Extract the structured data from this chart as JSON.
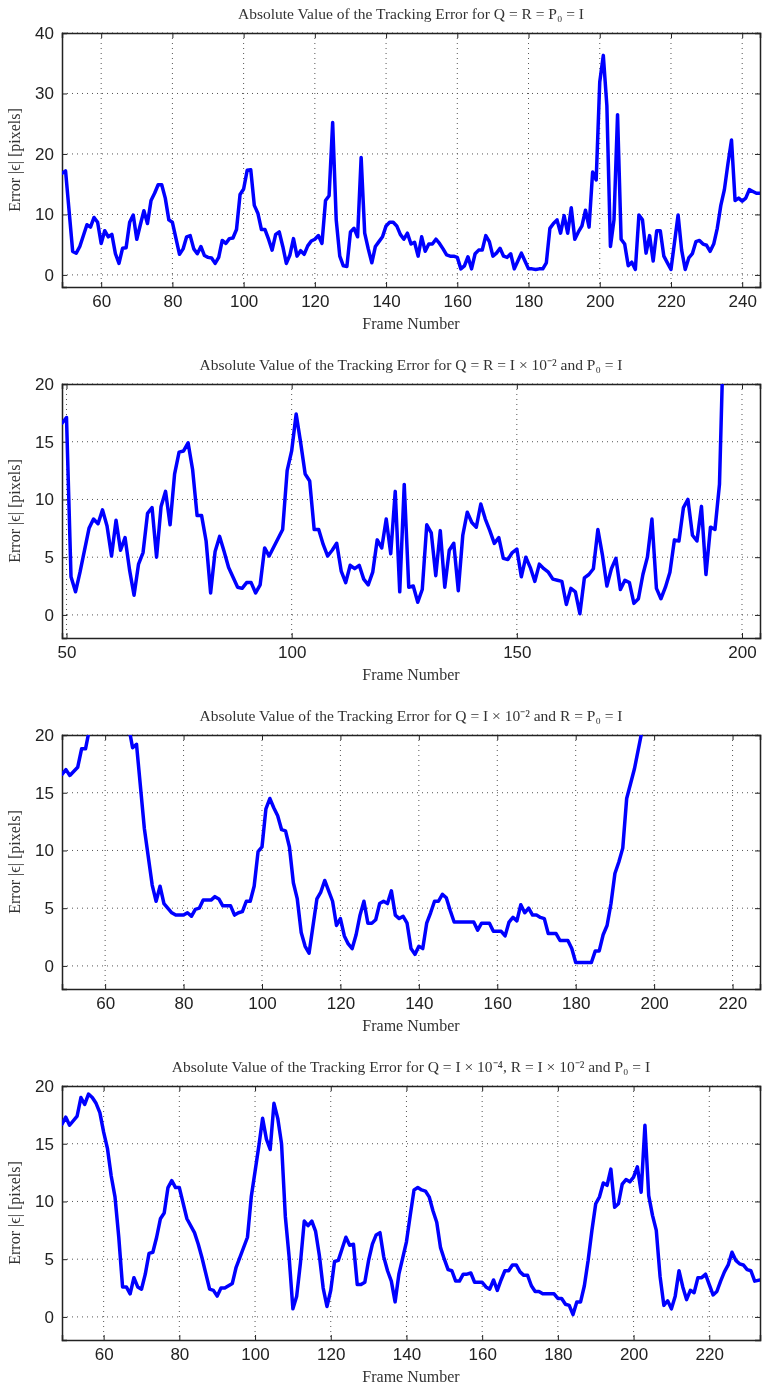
{
  "chart_data": [
    {
      "type": "line",
      "title": "Absolute Value of the Tracking Error for Q = R = P₀ = I",
      "xlabel": "Frame Number",
      "ylabel": "Error |ϵ| [pixels]",
      "xlim": [
        49,
        245
      ],
      "ylim": [
        -2,
        40
      ],
      "xticks": [
        60,
        80,
        100,
        120,
        140,
        160,
        180,
        200,
        220,
        240
      ],
      "yticks": [
        0,
        10,
        20,
        30,
        40
      ],
      "grid": true,
      "x": [
        49,
        50,
        52,
        53,
        54,
        56,
        57,
        58,
        59,
        60,
        61,
        62,
        63,
        64,
        65,
        66,
        67,
        68,
        69,
        70,
        71,
        72,
        73,
        74,
        75,
        76,
        77,
        78,
        79,
        80,
        82,
        83,
        84,
        85,
        86,
        87,
        88,
        89,
        90,
        91,
        92,
        93,
        94,
        95,
        96,
        97,
        98,
        99,
        100,
        101,
        102,
        103,
        104,
        105,
        106,
        107,
        108,
        109,
        110,
        111,
        112,
        113,
        114,
        115,
        116,
        117,
        118,
        119,
        120,
        121,
        122,
        123,
        124,
        125,
        126,
        127,
        128,
        129,
        130,
        131,
        132,
        133,
        134,
        135,
        136,
        137,
        138,
        139,
        140,
        141,
        142,
        143,
        144,
        145,
        146,
        147,
        148,
        149,
        150,
        151,
        152,
        153,
        154,
        155,
        156,
        157,
        158,
        159,
        160,
        161,
        162,
        163,
        164,
        165,
        166,
        167,
        168,
        169,
        170,
        171,
        172,
        173,
        174,
        175,
        176,
        177,
        178,
        179,
        180,
        181,
        182,
        183,
        184,
        185,
        186,
        187,
        188,
        189,
        190,
        191,
        192,
        193,
        194,
        195,
        196,
        197,
        198,
        199,
        200,
        201,
        202,
        203,
        204,
        205,
        206,
        207,
        208,
        209,
        210,
        211,
        212,
        213,
        214,
        215,
        216,
        217,
        218,
        219,
        220,
        222,
        223,
        224,
        225,
        226,
        227,
        228,
        229,
        230,
        231,
        232,
        233,
        234,
        235,
        236,
        237,
        238,
        239,
        240,
        241,
        242,
        243,
        244,
        245
      ],
      "series": [
        {
          "color": "#0000ff",
          "values": [
            16.8,
            17.2,
            3.9,
            3.6,
            4.7,
            8.3,
            7.9,
            9.5,
            8.7,
            5.2,
            7.3,
            6.3,
            6.7,
            3.5,
            1.9,
            4.4,
            4.5,
            8.7,
            9.9,
            5.9,
            8.3,
            10.6,
            8.5,
            12.3,
            13.5,
            14.9,
            14.9,
            12.7,
            9.1,
            8.7,
            3.4,
            4.3,
            6.3,
            6.5,
            4.3,
            3.5,
            4.7,
            3.2,
            2.9,
            2.8,
            1.9,
            2.9,
            5.7,
            5.2,
            6,
            6.1,
            7.5,
            13.3,
            14.2,
            17.3,
            17.4,
            11.5,
            10.2,
            7.5,
            7.5,
            5.9,
            4.1,
            6.7,
            7.1,
            4.7,
            1.9,
            3.3,
            6,
            3.1,
            4,
            3.4,
            4.8,
            5.6,
            5.9,
            6.5,
            5.2,
            12.3,
            13.1,
            25.2,
            9.1,
            3.1,
            1.5,
            1.4,
            7.1,
            7.7,
            6.3,
            19.4,
            6.9,
            4.3,
            2,
            4.7,
            5.5,
            6.3,
            8.1,
            8.7,
            8.7,
            8.1,
            6.7,
            5.9,
            6.9,
            5.1,
            5.4,
            3.1,
            6.3,
            3.9,
            5.1,
            5.1,
            5.9,
            5.2,
            4.3,
            3.3,
            3.1,
            3.1,
            2.9,
            1,
            1.5,
            3,
            1,
            3.5,
            4.1,
            4.1,
            6.5,
            5.5,
            3.1,
            3.6,
            4.4,
            3.1,
            2.9,
            3.5,
            1,
            2.3,
            3.6,
            2.3,
            1,
            1,
            0.9,
            1,
            1,
            2,
            7.7,
            8.5,
            9.1,
            6.9,
            9.8,
            6.9,
            11.1,
            5.9,
            7.1,
            8.1,
            10.7,
            7.9,
            17,
            15.7,
            31.9,
            36.3,
            28,
            4.7,
            9.1,
            26.5,
            5.9,
            5.1,
            1.5,
            2.1,
            0.9,
            9.9,
            9.1,
            3.6,
            6.5,
            2.3,
            7.3,
            7.3,
            3.1,
            2,
            0.9,
            9.9,
            4.1,
            0.9,
            2.8,
            3.5,
            5.5,
            5.7,
            5.1,
            4.9,
            3.9,
            5.1,
            7.7,
            11.5,
            14.1,
            18.4,
            22.3,
            12.3,
            12.7,
            12.2,
            12.7,
            14.1,
            13.8,
            13.5,
            13.5
          ]
        }
      ]
    },
    {
      "type": "line",
      "title": "Absolute Value of the Tracking Error for Q = R = I × 10⁻² and P₀ = I",
      "xlabel": "Frame Number",
      "ylabel": "Error |ϵ| [pixels]",
      "xlim": [
        49,
        204
      ],
      "ylim": [
        -2,
        20
      ],
      "xticks": [
        50,
        100,
        150,
        200
      ],
      "yticks": [
        0,
        5,
        10,
        15,
        20
      ],
      "grid": true,
      "x": [
        49,
        50,
        51,
        52,
        53,
        55,
        56,
        57,
        58,
        59,
        60,
        61,
        62,
        63,
        64,
        65,
        66,
        67,
        68,
        69,
        70,
        71,
        72,
        73,
        74,
        75,
        76,
        77,
        78,
        79,
        80,
        81,
        82,
        83,
        84,
        85,
        86,
        88,
        89,
        90,
        91,
        92,
        93,
        94,
        95,
        98,
        99,
        100,
        101,
        102,
        103,
        104,
        105,
        106,
        107,
        108,
        109,
        110,
        111,
        112,
        113,
        114,
        115,
        116,
        117,
        118,
        119,
        120,
        121,
        122,
        123,
        124,
        125,
        126,
        127,
        128,
        129,
        130,
        131,
        132,
        133,
        134,
        135,
        136,
        137,
        138,
        139,
        140,
        141,
        142,
        143,
        144,
        145,
        146,
        147,
        148,
        149,
        150,
        151,
        152,
        153,
        154,
        155,
        156,
        157,
        158,
        159,
        160,
        161,
        162,
        163,
        164,
        165,
        166,
        167,
        168,
        169,
        170,
        171,
        172,
        173,
        174,
        175,
        176,
        177,
        178,
        179,
        180,
        181,
        182,
        183,
        184,
        185,
        186,
        187,
        188,
        189,
        190,
        191,
        192,
        193,
        194,
        195,
        195.6
      ],
      "series": [
        {
          "color": "#0000ff",
          "values": [
            16.6,
            17.1,
            3.3,
            2,
            3.7,
            7.5,
            8.3,
            7.9,
            9.1,
            7.7,
            5.1,
            8.2,
            5.6,
            6.7,
            3.9,
            1.7,
            4.4,
            5.4,
            8.8,
            9.3,
            5,
            9.4,
            10.7,
            7.8,
            12.2,
            14.1,
            14.2,
            14.9,
            12.6,
            8.6,
            8.6,
            6.4,
            1.9,
            5.5,
            6.8,
            5.5,
            4.1,
            2.4,
            2.3,
            2.8,
            2.8,
            1.9,
            2.6,
            5.8,
            5.1,
            7.4,
            12.5,
            14.2,
            17.4,
            14.9,
            12.2,
            11.6,
            7.4,
            7.4,
            6.1,
            5.1,
            5.6,
            6.2,
            3.8,
            2.8,
            4.3,
            4,
            4.3,
            3.1,
            2.6,
            3.7,
            6.5,
            5.8,
            8.3,
            5.3,
            10.7,
            2,
            11.3,
            2.4,
            2.5,
            1.1,
            2.2,
            7.8,
            7.1,
            3.4,
            7.3,
            2.4,
            5.6,
            6.2,
            2.1,
            6.9,
            8.9,
            8,
            7.6,
            9.6,
            8.3,
            7.3,
            6.2,
            6.7,
            4.9,
            4.8,
            5.4,
            5.7,
            3.3,
            5,
            4.1,
            2.9,
            4.4,
            4,
            3.7,
            3.1,
            3,
            2.9,
            0.9,
            2.3,
            2,
            0.1,
            3.2,
            3.5,
            4,
            7.4,
            5.2,
            2.5,
            4,
            4.9,
            2.2,
            3,
            2.8,
            1,
            1.4,
            3.5,
            5,
            8.3,
            2.3,
            1.4,
            2.4,
            3.7,
            6.5,
            6.4,
            9.3,
            10,
            6.9,
            6.4,
            9.4,
            3.5,
            7.6,
            7.4,
            11.3,
            20
          ]
        }
      ]
    },
    {
      "type": "line",
      "title": "Absolute Value of the Tracking Error for Q = I × 10⁻² and R = P₀ = I",
      "xlabel": "Frame Number",
      "ylabel": "Error |ϵ| [pixels]",
      "xlim": [
        49,
        227
      ],
      "ylim": [
        -2,
        20
      ],
      "xticks": [
        60,
        80,
        100,
        120,
        140,
        160,
        180,
        200,
        220
      ],
      "yticks": [
        0,
        5,
        10,
        15,
        20
      ],
      "grid": true,
      "x": [
        49,
        50,
        51,
        53,
        54,
        55,
        55.7,
        61,
        66.4,
        67,
        68,
        70,
        72,
        73,
        74,
        75,
        77,
        78,
        80,
        81,
        82,
        83,
        84,
        85,
        87,
        88,
        89,
        90,
        92,
        93,
        94,
        95,
        96,
        97,
        98,
        99,
        100,
        101,
        102,
        103,
        104,
        105,
        106,
        107,
        108,
        109,
        110,
        111,
        112,
        114,
        115,
        116,
        117,
        118,
        119,
        120,
        121,
        122,
        123,
        124,
        125,
        126,
        127,
        128,
        129,
        130,
        131,
        132,
        133,
        134,
        135,
        136,
        137,
        138,
        139,
        140,
        141,
        142,
        143,
        144,
        145,
        146,
        147,
        148,
        149,
        154,
        155,
        156,
        158,
        159,
        161,
        162,
        163,
        164,
        165,
        166,
        167,
        168,
        169,
        170,
        171,
        172,
        173,
        175,
        176,
        178,
        179,
        180,
        184,
        185,
        186,
        187,
        188,
        189,
        190,
        191,
        192,
        193,
        195,
        196.7
      ],
      "series": [
        {
          "color": "#0000ff",
          "values": [
            16.6,
            17,
            16.5,
            17.2,
            18.8,
            18.8,
            20,
            null,
            20,
            18.9,
            19.2,
            11.9,
            7,
            5.6,
            6.9,
            5.4,
            4.6,
            4.4,
            4.4,
            4.6,
            4.3,
            4.9,
            5,
            5.7,
            5.7,
            6,
            5.8,
            5.2,
            5.2,
            4.4,
            4.6,
            4.7,
            5.6,
            5.6,
            6.9,
            9.9,
            10.3,
            13.6,
            14.5,
            13.7,
            13,
            11.8,
            11.7,
            10.3,
            7.2,
            5.8,
            2.9,
            1.7,
            1.1,
            5.8,
            6.4,
            7.4,
            6.5,
            5.6,
            3.5,
            4.1,
            2.6,
            1.9,
            1.5,
            2.7,
            4.4,
            5.6,
            3.7,
            3.7,
            4,
            5.4,
            5.6,
            5.4,
            6.5,
            4.4,
            4.1,
            4.3,
            3.7,
            1.5,
            1,
            1.7,
            1.5,
            3.7,
            4.6,
            5.6,
            5.6,
            6.2,
            5.9,
            4.8,
            3.8,
            3.8,
            3.1,
            3.7,
            3.7,
            3,
            3,
            2.6,
            3.8,
            4.2,
            3.9,
            5.3,
            4.6,
            5,
            4.4,
            4.4,
            4.2,
            4.1,
            2.8,
            2.8,
            2.2,
            2.2,
            1.5,
            0.3,
            0.3,
            1.3,
            1.3,
            2.7,
            3.5,
            5.4,
            8,
            9,
            10.2,
            14.5,
            17.1,
            20
          ]
        }
      ]
    },
    {
      "type": "line",
      "title": "Absolute Value of the Tracking Error for Q = I × 10⁻⁴, R = I × 10⁻² and P₀ = I",
      "xlabel": "Frame Number",
      "ylabel": "Error |ϵ| [pixels]",
      "xlim": [
        49,
        233.4
      ],
      "ylim": [
        -2,
        20
      ],
      "xticks": [
        60,
        80,
        100,
        120,
        140,
        160,
        180,
        200,
        220
      ],
      "yticks": [
        0,
        5,
        10,
        15,
        20
      ],
      "grid": true,
      "x": [
        49,
        50,
        51,
        53,
        54,
        55,
        56,
        57,
        58,
        59,
        60,
        61,
        62,
        63,
        64,
        65,
        66,
        67,
        68,
        69,
        70,
        71,
        72,
        73,
        74,
        75,
        76,
        77,
        78,
        79,
        80,
        82,
        84,
        85,
        86,
        88,
        89,
        90,
        91,
        92,
        94,
        95,
        98,
        99,
        100,
        101,
        102,
        103,
        104,
        105,
        106,
        107,
        108,
        109,
        110,
        111,
        112,
        113,
        114,
        115,
        116,
        117,
        118,
        119,
        120,
        121,
        122,
        123,
        124,
        125,
        126,
        127,
        128,
        129,
        130,
        131,
        132,
        133,
        134,
        135,
        136,
        137,
        138,
        139,
        140,
        141,
        142,
        143,
        144,
        145,
        146,
        147,
        148,
        149,
        150,
        151,
        152,
        153,
        154,
        155,
        156,
        157,
        158,
        160,
        161,
        162,
        163,
        164,
        165,
        166,
        167,
        168,
        169,
        170,
        171,
        172,
        173,
        174,
        175,
        176,
        179,
        180,
        181,
        182,
        183,
        184,
        185,
        186,
        187,
        188,
        189,
        190,
        191,
        192,
        193,
        194,
        195,
        196,
        197,
        198,
        199,
        200,
        201,
        202,
        203,
        204,
        205,
        206,
        207,
        208,
        209,
        210,
        211,
        212,
        213,
        214,
        215,
        216,
        217,
        218,
        219,
        220,
        221,
        222,
        223,
        224,
        225,
        226,
        227,
        228,
        229,
        230,
        231,
        232,
        233.4
      ],
      "series": [
        {
          "color": "#0000ff",
          "values": [
            16.7,
            17.3,
            16.6,
            17.4,
            19,
            18.4,
            19.3,
            19,
            18.5,
            17.7,
            16,
            14.6,
            12.2,
            10.4,
            6.9,
            2.6,
            2.6,
            2,
            3.4,
            2.6,
            2.4,
            3.7,
            5.5,
            5.6,
            6.9,
            8.5,
            9,
            11.2,
            11.8,
            11.2,
            11.2,
            8.5,
            7.3,
            6.3,
            5.1,
            2.4,
            2.3,
            1.8,
            2.5,
            2.5,
            2.9,
            4.3,
            6.9,
            10.4,
            12.6,
            14.8,
            17.2,
            15.4,
            14.5,
            18.5,
            17.2,
            15,
            8.7,
            5.2,
            0.7,
            1.8,
            4.7,
            8.3,
            7.9,
            8.3,
            7.4,
            5.3,
            2.5,
            0.9,
            2.3,
            4.8,
            4.9,
            5.9,
            6.9,
            6.2,
            6.3,
            2.8,
            2.8,
            3,
            4.9,
            6.3,
            7.1,
            7.3,
            5.2,
            4,
            3.1,
            1.3,
            3.7,
            5.1,
            6.5,
            8.8,
            11,
            11.2,
            11,
            10.9,
            10.4,
            9.2,
            8.2,
            6,
            5,
            4.1,
            4,
            3.1,
            3.1,
            3.7,
            3.7,
            3.8,
            3,
            3,
            2.6,
            2.4,
            3.2,
            2.3,
            3.2,
            4,
            4,
            4.5,
            4.5,
            3.9,
            3.6,
            3.6,
            2.7,
            2.2,
            2.2,
            2,
            2,
            1.6,
            1.6,
            1.1,
            1,
            0.2,
            1.3,
            1.3,
            2.7,
            4.9,
            7.5,
            9.8,
            10.4,
            11.6,
            11.4,
            12.8,
            9.5,
            9.8,
            11.5,
            11.9,
            11.7,
            12.1,
            13,
            10.8,
            16.6,
            10.5,
            8.8,
            7.5,
            3.5,
            1,
            1.4,
            0.7,
            1.8,
            4,
            2.6,
            1.5,
            2.3,
            2.1,
            3.4,
            3.4,
            3.7,
            2.8,
            1.9,
            2.2,
            3.1,
            3.9,
            4.5,
            5.6,
            4.9,
            4.6,
            4.5,
            4.1,
            4,
            3.1,
            3.2
          ]
        }
      ]
    }
  ]
}
